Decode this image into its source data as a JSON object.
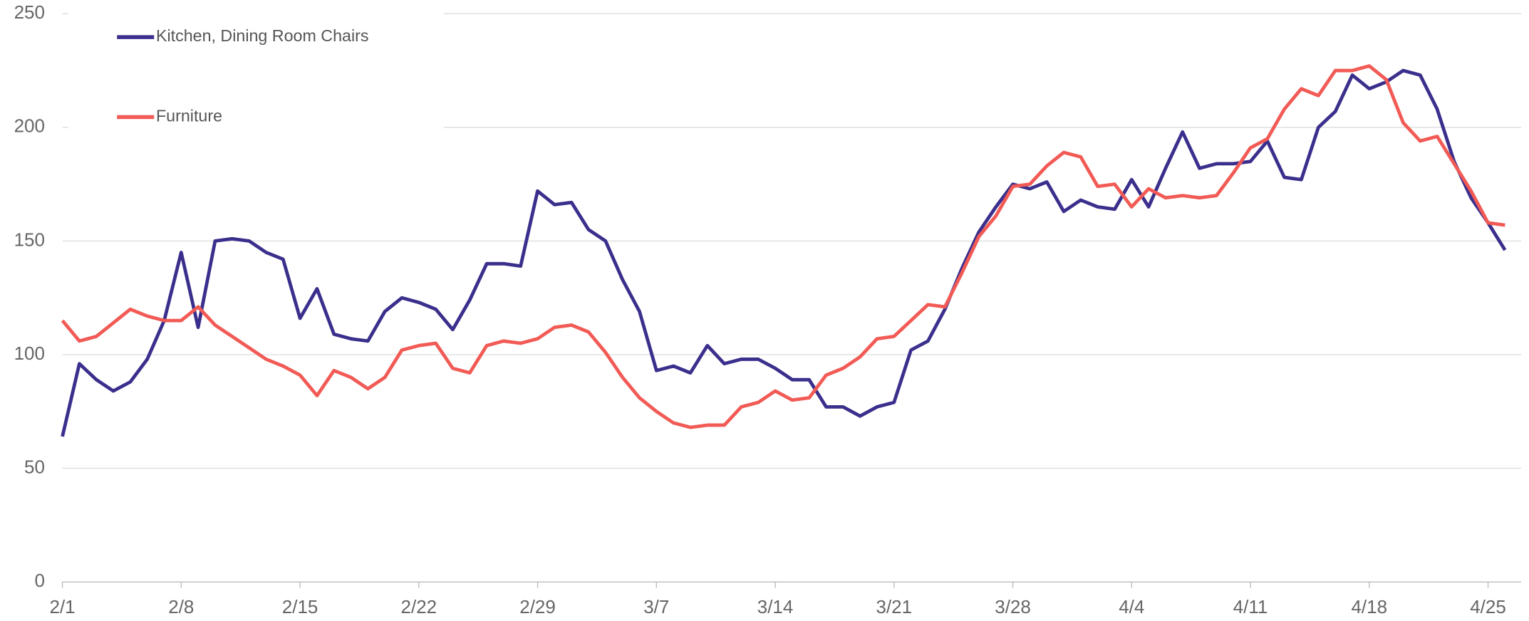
{
  "chart_data": {
    "type": "line",
    "categories": [
      "2/1",
      null,
      null,
      null,
      null,
      null,
      null,
      "2/8",
      null,
      null,
      null,
      null,
      null,
      null,
      "2/15",
      null,
      null,
      null,
      null,
      null,
      null,
      "2/22",
      null,
      null,
      null,
      null,
      null,
      null,
      "2/29",
      null,
      null,
      null,
      null,
      null,
      null,
      "3/7",
      null,
      null,
      null,
      null,
      null,
      null,
      "3/14",
      null,
      null,
      null,
      null,
      null,
      null,
      "3/21",
      null,
      null,
      null,
      null,
      null,
      null,
      "3/28",
      null,
      null,
      null,
      null,
      null,
      null,
      "4/4",
      null,
      null,
      null,
      null,
      null,
      null,
      "4/11",
      null,
      null,
      null,
      null,
      null,
      null,
      "4/18",
      null,
      null,
      null,
      null,
      null,
      null,
      "4/25",
      null
    ],
    "series": [
      {
        "name": "Kitchen, Dining Room Chairs",
        "color": "#3a2f8c",
        "values": [
          64,
          96,
          89,
          84,
          88,
          98,
          115,
          145,
          112,
          150,
          151,
          150,
          145,
          142,
          116,
          129,
          109,
          107,
          106,
          119,
          125,
          123,
          120,
          111,
          124,
          140,
          140,
          139,
          172,
          166,
          167,
          155,
          150,
          133,
          119,
          93,
          95,
          92,
          104,
          96,
          98,
          98,
          94,
          89,
          89,
          77,
          77,
          73,
          77,
          79,
          102,
          106,
          120,
          138,
          154,
          165,
          175,
          173,
          176,
          163,
          168,
          165,
          164,
          177,
          165,
          182,
          198,
          182,
          184,
          184,
          185,
          194,
          178,
          177,
          200,
          207,
          223,
          217,
          220,
          225,
          223,
          208,
          185,
          169,
          158,
          146
        ]
      },
      {
        "name": "Furniture",
        "color": "#f25a55",
        "values": [
          115,
          106,
          108,
          114,
          120,
          117,
          115,
          115,
          121,
          113,
          108,
          103,
          98,
          95,
          91,
          82,
          93,
          90,
          85,
          90,
          102,
          104,
          105,
          94,
          92,
          104,
          106,
          105,
          107,
          112,
          113,
          110,
          101,
          90,
          81,
          75,
          70,
          68,
          69,
          69,
          77,
          79,
          84,
          80,
          81,
          91,
          94,
          99,
          107,
          108,
          115,
          122,
          121,
          136,
          152,
          161,
          174,
          175,
          183,
          189,
          187,
          174,
          175,
          165,
          173,
          169,
          170,
          169,
          170,
          180,
          191,
          195,
          208,
          217,
          214,
          225,
          225,
          227,
          221,
          202,
          194,
          196,
          184,
          172,
          158,
          157
        ]
      }
    ],
    "ylim": [
      0,
      250
    ],
    "yticks": [
      0,
      50,
      100,
      150,
      200,
      250
    ],
    "grid": true,
    "legend": "upper left"
  }
}
